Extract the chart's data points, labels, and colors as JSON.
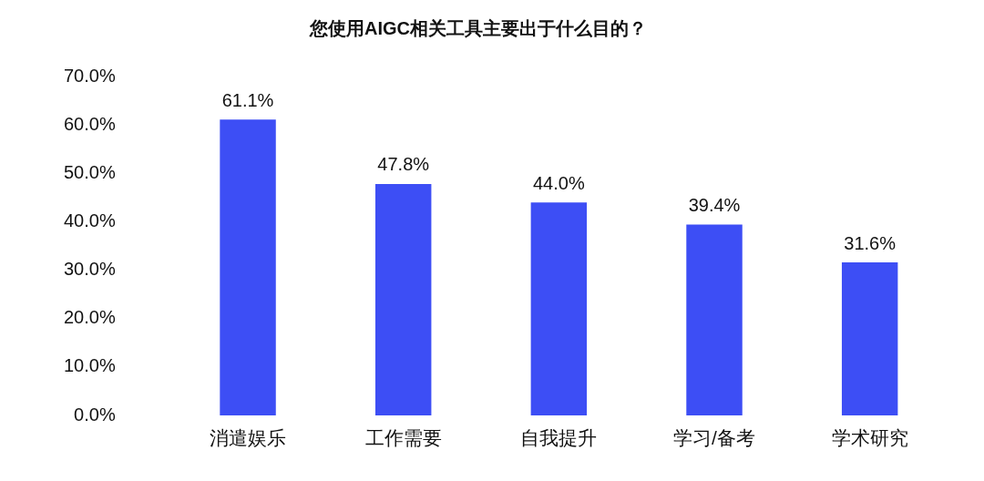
{
  "chart_data": {
    "type": "bar",
    "title": "您使用AIGC相关工具主要出于什么目的？",
    "categories": [
      "消遣娱乐",
      "工作需要",
      "自我提升",
      "学习/备考",
      "学术研究"
    ],
    "values": [
      61.1,
      47.8,
      44.0,
      39.4,
      31.6
    ],
    "value_labels": [
      "61.1%",
      "47.8%",
      "44.0%",
      "39.4%",
      "31.6%"
    ],
    "color": "#3d4ef5",
    "ylim": [
      0,
      70
    ],
    "yticks": [
      {
        "value": 0,
        "label": "0.0%"
      },
      {
        "value": 10,
        "label": "10.0%"
      },
      {
        "value": 20,
        "label": "20.0%"
      },
      {
        "value": 30,
        "label": "30.0%"
      },
      {
        "value": 40,
        "label": "40.0%"
      },
      {
        "value": 50,
        "label": "50.0%"
      },
      {
        "value": 60,
        "label": "60.0%"
      },
      {
        "value": 70,
        "label": "70.0%"
      }
    ],
    "grid": false,
    "legend": false
  }
}
